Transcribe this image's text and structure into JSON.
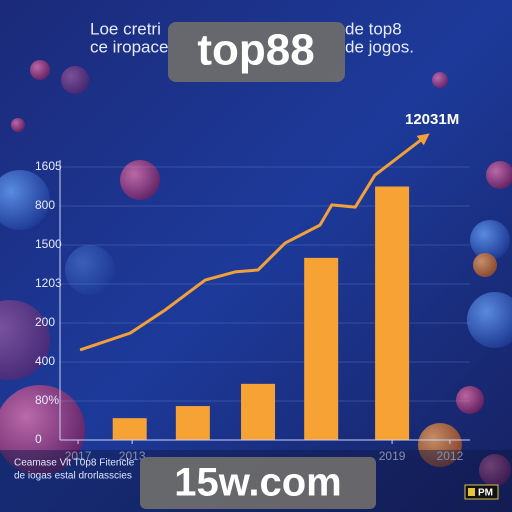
{
  "chart_data": {
    "type": "bar",
    "title_parts": [
      "Loe cretri",
      "de top8",
      "ce iropace",
      "de jogos."
    ],
    "badge": "top88",
    "annotation": "12031M",
    "footer_badge": "15w.com",
    "footer_text": [
      "Ceamase Vit T0p8 Fitencle",
      "de iogas estal drorlasscies"
    ],
    "corner_badge": "PM",
    "color": "#f7a234",
    "line_color": "#f2a03a",
    "xlim": [
      0,
      10
    ],
    "ylim": [
      0,
      8
    ],
    "xticks": [
      {
        "value": 0.44,
        "label": "2017"
      },
      {
        "value": 1.76,
        "label": "2013"
      },
      {
        "value": 8.1,
        "label": "2019"
      },
      {
        "value": 9.51,
        "label": "2012"
      }
    ],
    "yticks": [
      {
        "value": 0,
        "label": "0"
      },
      {
        "value": 1,
        "label": "80%"
      },
      {
        "value": 2,
        "label": "400"
      },
      {
        "value": 3,
        "label": "200"
      },
      {
        "value": 4,
        "label": "1203"
      },
      {
        "value": 5,
        "label": "1500"
      },
      {
        "value": 6,
        "label": "800"
      },
      {
        "value": 7,
        "label": "1605"
      }
    ],
    "grid": true,
    "x": [
      1.7,
      3.24,
      4.83,
      6.37,
      8.1
    ],
    "values": [
      0.56,
      0.87,
      1.44,
      4.67,
      6.5
    ],
    "line": {
      "x": [
        0.49,
        1.71,
        2.56,
        3.54,
        4.27,
        4.83,
        5.49,
        6.34,
        6.63,
        7.2,
        7.68,
        8.9
      ],
      "values": [
        2.31,
        2.74,
        3.33,
        4.1,
        4.31,
        4.36,
        5.05,
        5.51,
        6.03,
        5.97,
        6.79,
        7.77
      ]
    }
  }
}
